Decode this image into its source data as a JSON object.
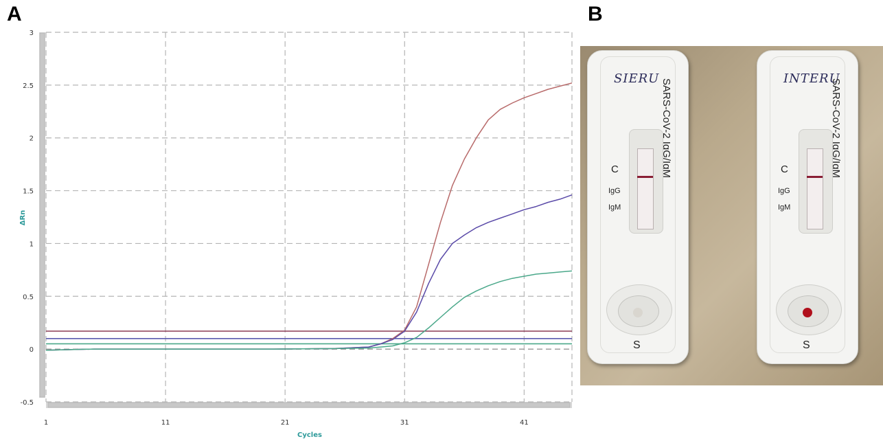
{
  "panels": {
    "a_label": "A",
    "b_label": "B"
  },
  "chart_data": {
    "type": "line",
    "title": "",
    "xlabel": "Cycles",
    "ylabel": "ΔRn",
    "xlim": [
      1,
      45
    ],
    "ylim": [
      -0.5,
      3
    ],
    "xticks": [
      1,
      11,
      21,
      31,
      41
    ],
    "yticks": [
      -0.5,
      0,
      0.5,
      1,
      1.5,
      2,
      2.5,
      3
    ],
    "ytick_labels": [
      "-0.5",
      "0",
      "0.5",
      "1",
      "1.5",
      "2",
      "2.5",
      "3"
    ],
    "grid": true,
    "series": [
      {
        "color": "#b86a6a",
        "x": [
          1,
          5,
          10,
          15,
          20,
          25,
          28,
          29,
          30,
          31,
          32,
          33,
          34,
          35,
          36,
          37,
          38,
          39,
          40,
          41,
          42,
          43,
          44,
          45
        ],
        "y": [
          -0.01,
          0,
          0,
          0,
          0,
          0.005,
          0.02,
          0.05,
          0.1,
          0.18,
          0.4,
          0.8,
          1.2,
          1.55,
          1.8,
          2.0,
          2.17,
          2.27,
          2.33,
          2.38,
          2.42,
          2.46,
          2.49,
          2.52
        ]
      },
      {
        "color": "#5a4aa8",
        "x": [
          1,
          5,
          10,
          15,
          20,
          25,
          28,
          29,
          30,
          31,
          32,
          33,
          34,
          35,
          36,
          37,
          38,
          39,
          40,
          41,
          42,
          43,
          44,
          45
        ],
        "y": [
          -0.01,
          0,
          0,
          0,
          0,
          0.005,
          0.02,
          0.05,
          0.09,
          0.17,
          0.35,
          0.62,
          0.85,
          1.0,
          1.08,
          1.15,
          1.2,
          1.24,
          1.28,
          1.32,
          1.35,
          1.39,
          1.42,
          1.46
        ]
      },
      {
        "color": "#4aa88a",
        "x": [
          1,
          5,
          10,
          15,
          20,
          25,
          28,
          29,
          30,
          31,
          32,
          33,
          34,
          35,
          36,
          37,
          38,
          39,
          40,
          41,
          42,
          43,
          44,
          45
        ],
        "y": [
          -0.01,
          0,
          0,
          0,
          0,
          0.005,
          0.01,
          0.02,
          0.03,
          0.06,
          0.11,
          0.2,
          0.3,
          0.4,
          0.49,
          0.55,
          0.6,
          0.64,
          0.67,
          0.69,
          0.71,
          0.72,
          0.73,
          0.74
        ]
      }
    ],
    "thresholds": [
      {
        "color": "#8a3b55",
        "y": 0.17
      },
      {
        "color": "#5a5ab0",
        "y": 0.1
      },
      {
        "color": "#4aa88a",
        "y": 0.05
      }
    ]
  },
  "photo": {
    "cassettes": [
      {
        "handwriting": "SIERU",
        "brand": "SARS-CoV-2 IgG/IgM",
        "c_label": "C",
        "igg_label": "IgG",
        "igm_label": "IgM",
        "s_label": "S",
        "sample_color": "#d9d6cf"
      },
      {
        "handwriting": "INTERU",
        "brand": "SARS-CoV-2 IgG/IgM",
        "c_label": "C",
        "igg_label": "IgG",
        "igm_label": "IgM",
        "s_label": "S",
        "sample_color": "#b0101c"
      }
    ]
  }
}
